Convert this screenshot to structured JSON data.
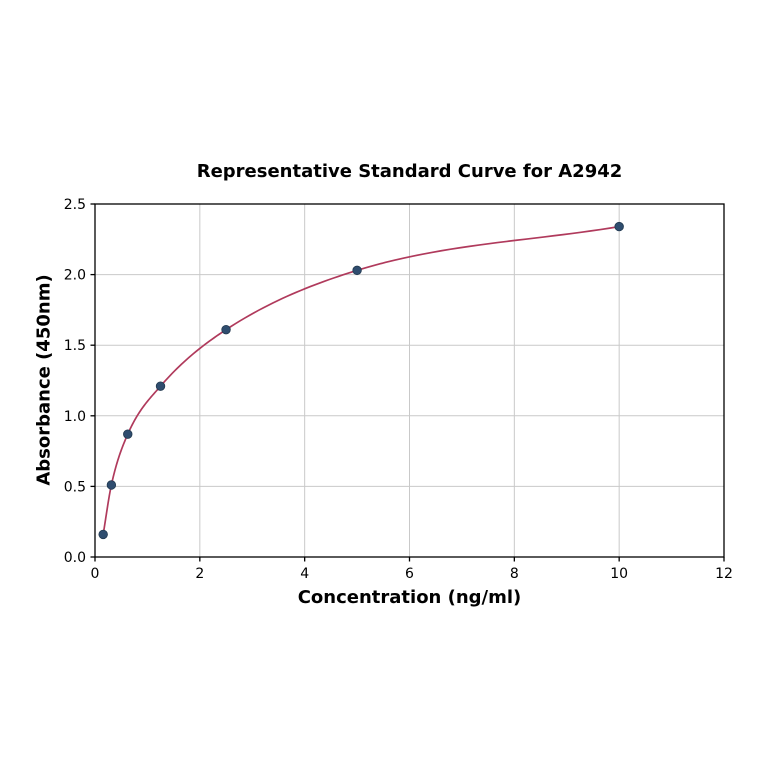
{
  "chart_data": {
    "type": "scatter",
    "title": "Representative Standard Curve for A2942",
    "xlabel": "Concentration (ng/ml)",
    "ylabel": "Absorbance (450nm)",
    "x": [
      0.156,
      0.3125,
      0.625,
      1.25,
      2.5,
      5,
      10
    ],
    "y": [
      0.16,
      0.51,
      0.87,
      1.21,
      1.61,
      2.03,
      2.34
    ],
    "xlim": [
      0,
      12
    ],
    "ylim": [
      0,
      2.5
    ],
    "xticks": [
      0,
      2,
      4,
      6,
      8,
      10,
      12
    ],
    "xtick_labels": [
      "0",
      "2",
      "4",
      "6",
      "8",
      "10",
      "12"
    ],
    "yticks": [
      0,
      0.5,
      1.0,
      1.5,
      2.0,
      2.5
    ],
    "ytick_labels": [
      "0.0",
      "0.5",
      "1.0",
      "1.5",
      "2.0",
      "2.5"
    ],
    "grid": true,
    "legend": "none",
    "colors": {
      "curve": "#b03a5c",
      "marker": "#2f4d6f",
      "marker_edge": "#22394f",
      "grid": "#c9c9c9",
      "axis": "#000000",
      "background": "#ffffff"
    }
  }
}
